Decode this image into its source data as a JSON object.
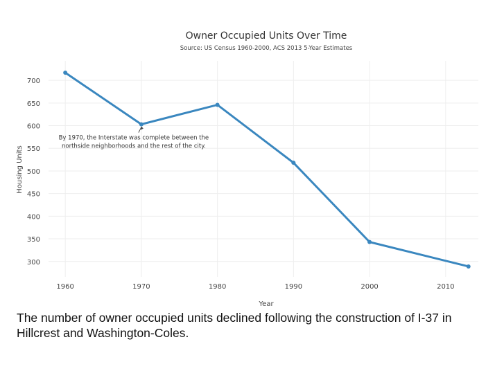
{
  "chart_data": {
    "type": "line",
    "title": "Owner Occupied Units Over Time",
    "subtitle": "Source: US Census 1960-2000, ACS 2013 5-Year Estimates",
    "xlabel": "Year",
    "ylabel": "Housing Units",
    "x": [
      1960,
      1970,
      1980,
      1990,
      2000,
      2013
    ],
    "series": [
      {
        "name": "Owner Occupied Units",
        "color": "#3a87bf",
        "values": [
          717,
          603,
          646,
          518,
          343,
          289
        ]
      }
    ],
    "xlim": [
      1957.8,
      2014.3
    ],
    "xticks": [
      1960,
      1970,
      1980,
      1990,
      2000,
      2010
    ],
    "ylim": [
      266,
      743
    ],
    "yticks": [
      300,
      350,
      400,
      450,
      500,
      550,
      600,
      650,
      700
    ],
    "grid": true,
    "annotation": {
      "x": 1970,
      "y": 603,
      "text_lines": [
        "By 1970, the Interstate was complete between the",
        "northside neighborhoods and the rest of the city."
      ]
    }
  },
  "caption": "The number of owner occupied units declined following the construction of I-37 in Hillcrest and Washington-Coles."
}
